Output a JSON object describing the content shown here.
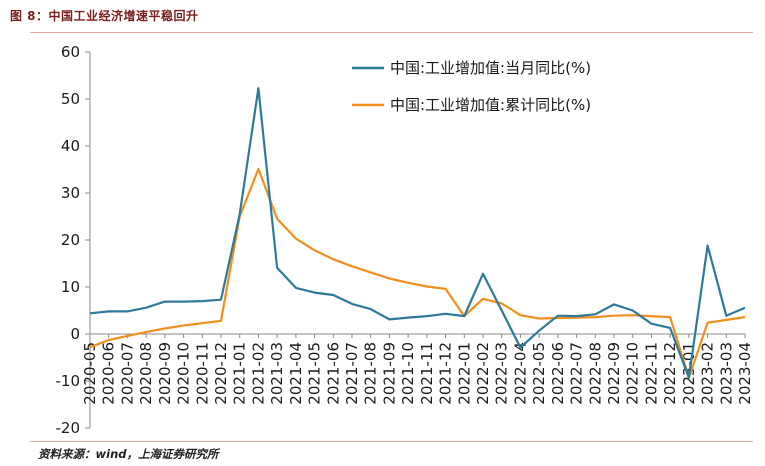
{
  "figure_title": "图 8：中国工业经济增速平稳回升",
  "source": "资料来源：wind，上海证券研究所",
  "colors": {
    "monthly": "#2e7a9a",
    "cumulative": "#f28e1c",
    "rule": "#e8a3a3"
  },
  "chart_data": {
    "type": "line",
    "title": "",
    "xlabel": "",
    "ylabel": "",
    "ylim": [
      -20,
      60
    ],
    "yticks": [
      -20,
      -10,
      0,
      10,
      20,
      30,
      40,
      50,
      60
    ],
    "legend_position": "top-right",
    "grid": false,
    "x": [
      "2020-05",
      "2020-06",
      "2020-07",
      "2020-08",
      "2020-09",
      "2020-10",
      "2020-11",
      "2020-12",
      "2021-01",
      "2021-02",
      "2021-03",
      "2021-04",
      "2021-05",
      "2021-06",
      "2021-07",
      "2021-08",
      "2021-09",
      "2021-10",
      "2021-11",
      "2021-12",
      "2022-01",
      "2022-02",
      "2022-03",
      "2022-04",
      "2022-05",
      "2022-06",
      "2022-07",
      "2022-08",
      "2022-09",
      "2022-10",
      "2022-11",
      "2022-12",
      "2023-01",
      "2023-02",
      "2023-03",
      "2023-04"
    ],
    "series": [
      {
        "name": "中国:工业增加值:当月同比(%)",
        "color": "#2e7a9a",
        "values": [
          4.4,
          4.8,
          4.8,
          5.6,
          6.9,
          6.9,
          7.0,
          7.3,
          null,
          52.3,
          14.1,
          9.8,
          8.8,
          8.3,
          6.4,
          5.3,
          3.1,
          3.5,
          3.8,
          4.3,
          null,
          12.8,
          5.0,
          -2.9,
          0.7,
          3.9,
          3.8,
          4.2,
          6.3,
          5.0,
          2.2,
          1.3,
          null,
          18.8,
          3.9,
          5.6
        ]
      },
      {
        "name": "中国:工业增加值:累计同比(%)",
        "color": "#f28e1c",
        "values": [
          -2.8,
          -1.3,
          -0.4,
          0.4,
          1.2,
          1.8,
          2.3,
          2.8,
          null,
          35.1,
          24.5,
          20.3,
          17.8,
          15.9,
          14.4,
          13.1,
          11.8,
          10.9,
          10.1,
          9.6,
          null,
          7.5,
          6.5,
          4.0,
          3.3,
          3.4,
          3.5,
          3.6,
          3.9,
          4.0,
          3.8,
          3.6,
          null,
          2.4,
          3.0,
          3.6
        ]
      }
    ],
    "breaks": [
      {
        "x": "2021-01",
        "monthly": 25.5,
        "cumulative": 25.0
      },
      {
        "x": "2022-01",
        "monthly": 3.8,
        "cumulative": 3.8
      },
      {
        "x": "2023-01",
        "monthly": -9.3,
        "cumulative": -9.3
      }
    ]
  }
}
